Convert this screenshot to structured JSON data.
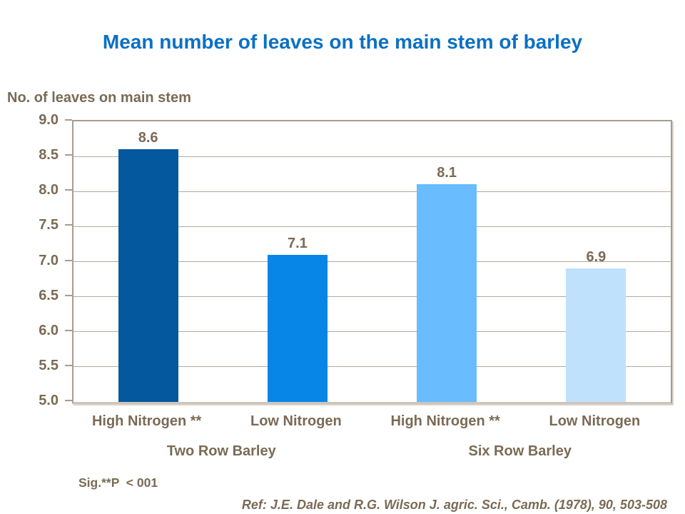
{
  "chart_data": {
    "type": "bar",
    "title": "Mean number of leaves on the main stem of barley",
    "ylabel": "No. of leaves on main stem",
    "xlabel": "",
    "categories": [
      "High Nitrogen **",
      "Low Nitrogen",
      "High Nitrogen **",
      "Low Nitrogen"
    ],
    "values": [
      8.6,
      7.1,
      8.1,
      6.9
    ],
    "data_labels": [
      "8.6",
      "7.1",
      "8.1",
      "6.9"
    ],
    "groups": [
      {
        "label": "Two Row Barley",
        "categories_spanned": 2
      },
      {
        "label": "Six Row Barley",
        "categories_spanned": 2
      }
    ],
    "bar_colors": [
      "#04589E",
      "#0786E8",
      "#69BCFD",
      "#BFE1FC"
    ],
    "ylim": [
      5.0,
      9.0
    ],
    "ytick_step": 0.5,
    "yticks": [
      "9.0",
      "8.5",
      "8.0",
      "7.5",
      "7.0",
      "6.5",
      "6.0",
      "5.5",
      "5.0"
    ],
    "grid": true,
    "legend": false
  },
  "footnotes": {
    "significance": "Sig.**P  < 001",
    "reference": "Ref: J.E. Dale and R.G. Wilson J. agric. Sci., Camb. (1978), 90, 503-508"
  },
  "colors": {
    "title": "#0B70C4",
    "text": "#7A6A55",
    "gridline": "#B2A99D",
    "axis": "#A69C8F",
    "axis_bottom": "#CBC5BB"
  }
}
